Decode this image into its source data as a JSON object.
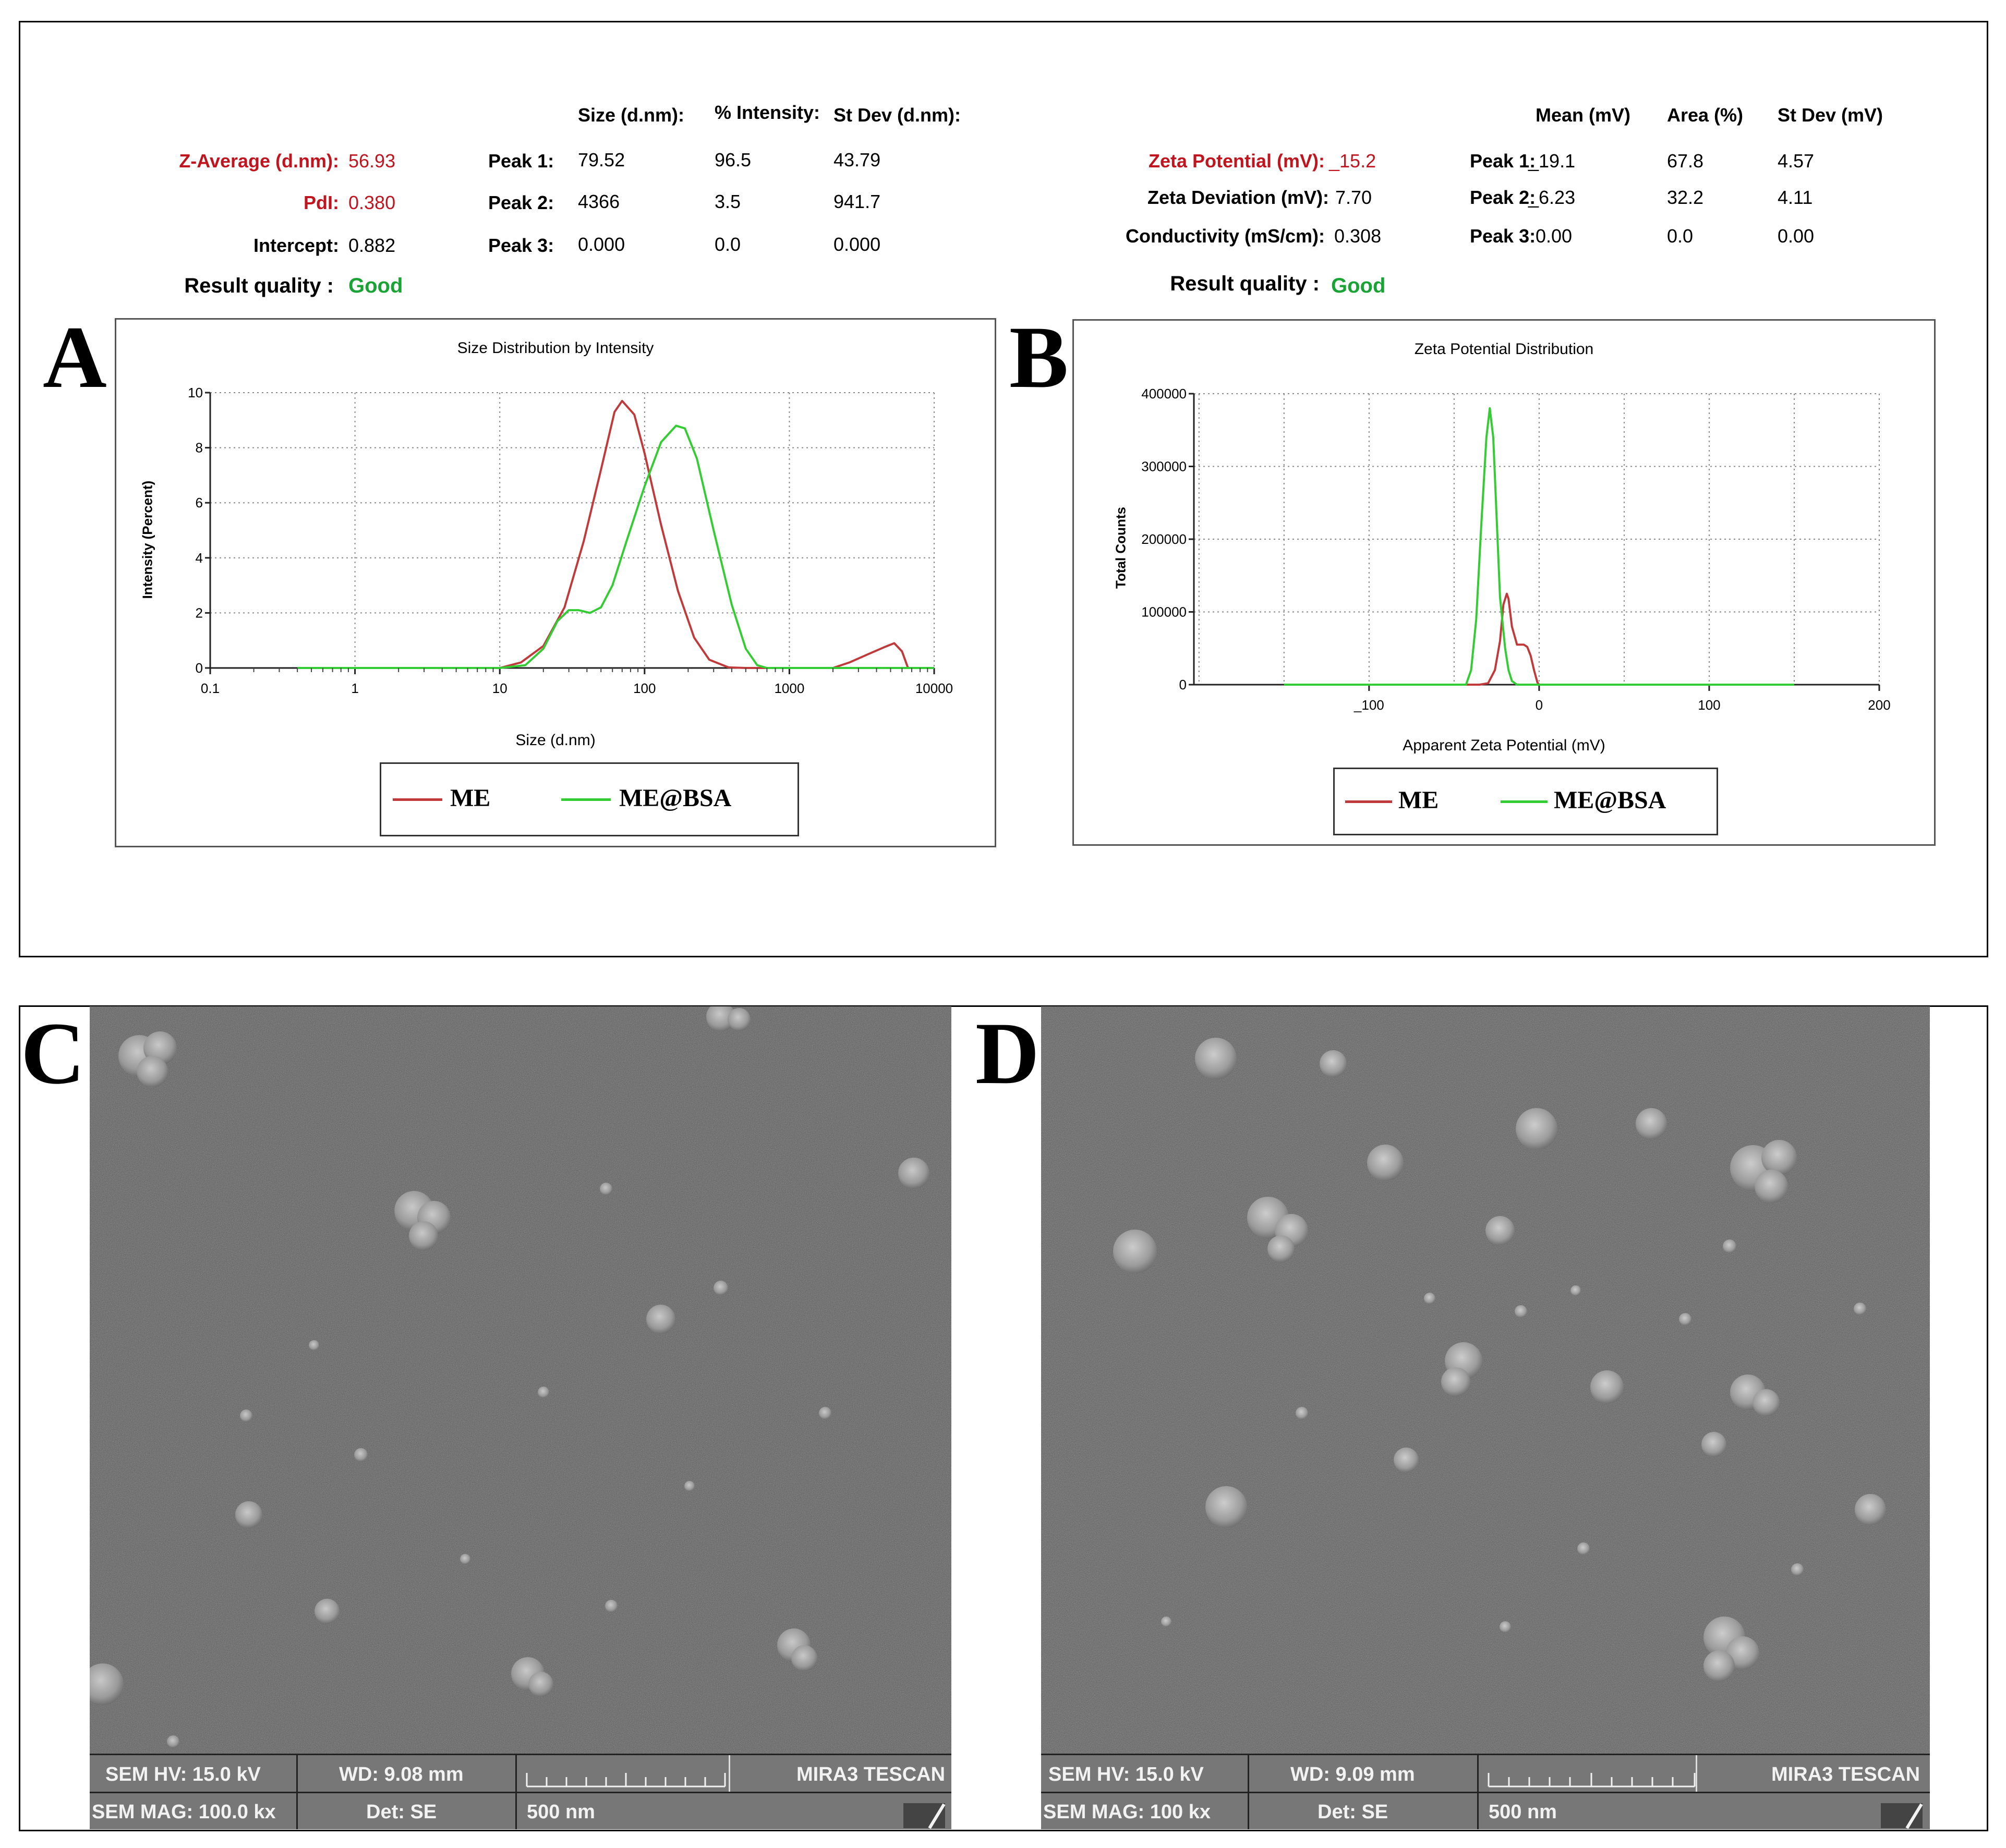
{
  "panels": {
    "a": "A",
    "b": "B",
    "c": "C",
    "d": "D"
  },
  "size_report": {
    "col_headers": [
      "Size (d.nm):",
      "% Intensity:",
      "St Dev (d.nm):"
    ],
    "z_average_label": "Z-Average (d.nm):",
    "z_average_value": "56.93",
    "pdi_label": "PdI:",
    "pdi_value": "0.380",
    "intercept_label": "Intercept:",
    "intercept_value": "0.882",
    "result_quality_label": "Result quality :",
    "result_quality_value": "Good",
    "peaks": [
      {
        "label": "Peak 1:",
        "size": "79.52",
        "intensity": "96.5",
        "stdev": "43.79"
      },
      {
        "label": "Peak 2:",
        "size": "4366",
        "intensity": "3.5",
        "stdev": "941.7"
      },
      {
        "label": "Peak 3:",
        "size": "0.000",
        "intensity": "0.0",
        "stdev": "0.000"
      }
    ]
  },
  "zeta_report": {
    "col_headers": [
      "Mean (mV)",
      "Area (%)",
      "St Dev (mV)"
    ],
    "zeta_potential_label": "Zeta Potential (mV):",
    "zeta_potential_value": "_15.2",
    "zeta_deviation_label": "Zeta Deviation (mV):",
    "zeta_deviation_value": "7.70",
    "conductivity_label": "Conductivity (mS/cm):",
    "conductivity_value": "0.308",
    "result_quality_label": "Result quality :",
    "result_quality_value": "Good",
    "peaks": [
      {
        "label": "Peak 1:",
        "mean": "_19.1",
        "area": "67.8",
        "stdev": "4.57"
      },
      {
        "label": "Peak 2:",
        "mean": "_6.23",
        "area": "32.2",
        "stdev": "4.11"
      },
      {
        "label": "Peak 3:",
        "mean": "0.00",
        "area": "0.0",
        "stdev": "0.00"
      }
    ]
  },
  "colors": {
    "me": "#c0393b",
    "me_bsa": "#33cc33",
    "red_text": "#c0151f",
    "green_text": "#1aa335"
  },
  "chart_data": [
    {
      "type": "line",
      "title": "Size Distribution by Intensity",
      "xlabel": "Size (d.nm)",
      "ylabel": "Intensity (Percent)",
      "x_scale": "log",
      "xlim": [
        0.1,
        10000
      ],
      "ylim": [
        0,
        10
      ],
      "x_ticks": [
        0.1,
        1,
        10,
        100,
        1000,
        10000
      ],
      "x_tick_labels": [
        "0.1",
        "1",
        "10",
        "100",
        "1000",
        "10000"
      ],
      "y_ticks": [
        0,
        2,
        4,
        6,
        8,
        10
      ],
      "y_tick_labels": [
        "0",
        "2",
        "4",
        "6",
        "8",
        "10"
      ],
      "grid": true,
      "legend": "bottom-center",
      "series": [
        {
          "name": "ME",
          "x": [
            0.4,
            10,
            14,
            20,
            28,
            38,
            50,
            62,
            70,
            85,
            100,
            130,
            170,
            220,
            280,
            380,
            500,
            1000,
            2000,
            2600,
            3500,
            4500,
            5300,
            6000,
            6600
          ],
          "y": [
            0,
            0,
            0.2,
            0.8,
            2.2,
            4.6,
            7.2,
            9.3,
            9.7,
            9.2,
            7.8,
            5.2,
            2.8,
            1.1,
            0.3,
            0.02,
            0,
            0,
            0,
            0.2,
            0.5,
            0.75,
            0.9,
            0.6,
            0
          ]
        },
        {
          "name": "ME@BSA",
          "x": [
            0.4,
            10,
            15,
            20,
            25,
            30,
            35,
            42,
            50,
            60,
            75,
            100,
            130,
            165,
            190,
            230,
            300,
            400,
            500,
            600,
            700,
            800,
            1000,
            10000
          ],
          "y": [
            0,
            0,
            0.1,
            0.7,
            1.7,
            2.1,
            2.1,
            2.0,
            2.2,
            3.0,
            4.6,
            6.6,
            8.2,
            8.8,
            8.7,
            7.6,
            5.0,
            2.3,
            0.7,
            0.1,
            0,
            0,
            0,
            0
          ]
        }
      ]
    },
    {
      "type": "line",
      "title": "Zeta Potential Distribution",
      "xlabel": "Apparent Zeta Potential (mV)",
      "ylabel": "Total Counts",
      "xlim": [
        -203,
        200
      ],
      "ylim": [
        0,
        400000
      ],
      "x_ticks": [
        -100,
        0,
        100,
        200
      ],
      "x_tick_labels": [
        "_100",
        "0",
        "100",
        "200"
      ],
      "x_grid": [
        -200,
        -150,
        -100,
        -50,
        0,
        50,
        100,
        150,
        200
      ],
      "y_ticks": [
        0,
        100000,
        200000,
        300000,
        400000
      ],
      "y_tick_labels": [
        "0",
        "100000",
        "200000",
        "300000",
        "400000"
      ],
      "grid": true,
      "legend": "bottom-center",
      "series": [
        {
          "name": "ME",
          "x": [
            -150,
            -45,
            -35,
            -30,
            -26,
            -23,
            -21,
            -19,
            -18,
            -16,
            -13,
            -11,
            -9,
            -7,
            -5,
            -3,
            -1,
            0,
            150
          ],
          "y": [
            0,
            0,
            0,
            2000,
            20000,
            60000,
            110000,
            125000,
            118000,
            80000,
            55000,
            55000,
            55000,
            52000,
            40000,
            20000,
            3000,
            0,
            0
          ]
        },
        {
          "name": "ME@BSA",
          "x": [
            -150,
            -43,
            -40,
            -37,
            -34,
            -31,
            -29,
            -27,
            -25,
            -23,
            -20,
            -18,
            -16,
            -13,
            -10,
            150
          ],
          "y": [
            0,
            0,
            20000,
            90000,
            220000,
            340000,
            380000,
            340000,
            230000,
            120000,
            50000,
            20000,
            5000,
            0,
            0,
            0
          ]
        }
      ]
    }
  ],
  "sem_c": {
    "hv": "SEM HV: 15.0 kV",
    "wd": "WD: 9.08 mm",
    "mag": "SEM MAG: 100.0 kx",
    "det": "Det: SE",
    "scale": "500 nm",
    "brand": "MIRA3 TESCAN"
  },
  "sem_d": {
    "hv": "SEM HV: 15.0 kV",
    "wd": "WD: 9.09 mm",
    "mag": "SEM MAG: 100 kx",
    "det": "Det: SE",
    "scale": "500 nm",
    "brand": "MIRA3 TESCAN"
  }
}
